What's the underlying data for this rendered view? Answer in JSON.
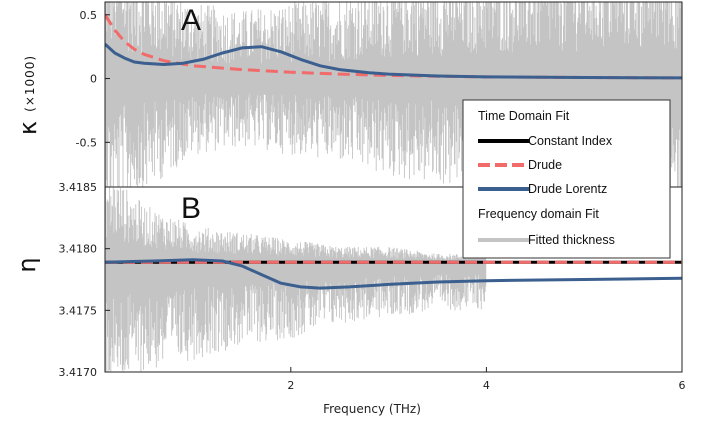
{
  "chart_data": [
    {
      "panel": "A",
      "type": "line",
      "ylabel_symbol": "κ",
      "ylabel_unit": "(×1000)",
      "xlim": [
        0.1,
        6
      ],
      "ylim": [
        -0.85,
        0.6
      ],
      "yticks": [
        0.5,
        0,
        -0.5
      ],
      "ytick_labels": [
        "0.5",
        "0",
        "-0.5"
      ],
      "noise_envelope": {
        "x": [
          0.1,
          0.5,
          1.0,
          1.5,
          2.0,
          2.5,
          3.0,
          3.5,
          4.0,
          4.5,
          5.0,
          5.5,
          6.0
        ],
        "half_width": [
          0.9,
          0.75,
          0.5,
          0.45,
          0.5,
          0.55,
          0.65,
          0.7,
          0.75,
          0.8,
          0.85,
          0.9,
          0.9
        ]
      },
      "series": [
        {
          "name": "Drude",
          "color": "#f26b6b",
          "style": "dashed",
          "x": [
            0.1,
            0.2,
            0.3,
            0.4,
            0.5,
            0.7,
            1.0,
            1.5,
            2.0,
            2.5,
            3.0,
            3.5,
            4.0,
            5.0,
            6.0
          ],
          "y": [
            0.5,
            0.38,
            0.29,
            0.23,
            0.19,
            0.14,
            0.1,
            0.07,
            0.05,
            0.035,
            0.025,
            0.018,
            0.013,
            0.008,
            0.005
          ]
        },
        {
          "name": "Drude Lorentz",
          "color": "#3b5f8f",
          "style": "solid",
          "x": [
            0.1,
            0.2,
            0.3,
            0.4,
            0.5,
            0.7,
            0.9,
            1.1,
            1.3,
            1.5,
            1.7,
            1.9,
            2.1,
            2.3,
            2.5,
            2.8,
            3.0,
            3.5,
            4.0,
            5.0,
            6.0
          ],
          "y": [
            0.27,
            0.2,
            0.16,
            0.13,
            0.12,
            0.11,
            0.12,
            0.15,
            0.2,
            0.24,
            0.25,
            0.21,
            0.15,
            0.1,
            0.07,
            0.045,
            0.035,
            0.02,
            0.013,
            0.008,
            0.005
          ]
        }
      ]
    },
    {
      "panel": "B",
      "type": "line",
      "ylabel_symbol": "η",
      "xlabel": "Frequency (THz)",
      "xlim": [
        0.1,
        6
      ],
      "ylim": [
        3.417,
        3.4185
      ],
      "yticks": [
        3.4185,
        3.418,
        3.4175,
        3.417
      ],
      "ytick_labels": [
        "3.4185",
        "3.4180",
        "3.4175",
        "3.4170"
      ],
      "xticks": [
        2,
        4,
        6
      ],
      "xtick_labels": [
        "2",
        "4",
        "6"
      ],
      "noise_envelope": {
        "x": [
          0.1,
          0.5,
          1.0,
          1.5,
          2.0,
          2.5,
          3.0,
          3.5,
          4.0
        ],
        "upper": [
          3.41855,
          3.4183,
          3.41815,
          3.4181,
          3.41805,
          3.418,
          3.418,
          3.41795,
          3.41795
        ],
        "lower": [
          3.417,
          3.4171,
          3.4172,
          3.4173,
          3.41735,
          3.41745,
          3.4175,
          3.41755,
          3.41755
        ],
        "end_x": 4.0
      },
      "series": [
        {
          "name": "Constant Index",
          "color": "#000000",
          "style": "solid",
          "x": [
            0.1,
            6
          ],
          "y": [
            3.41789,
            3.41789
          ]
        },
        {
          "name": "Drude",
          "color": "#f26b6b",
          "style": "dashed",
          "x": [
            0.1,
            6
          ],
          "y": [
            3.41789,
            3.41789
          ]
        },
        {
          "name": "Drude Lorentz",
          "color": "#3b5f8f",
          "style": "solid",
          "x": [
            0.1,
            0.6,
            1.0,
            1.3,
            1.5,
            1.7,
            1.9,
            2.1,
            2.3,
            2.6,
            3.0,
            3.5,
            4.0,
            5.0,
            6.0
          ],
          "y": [
            3.41789,
            3.4179,
            3.41791,
            3.4179,
            3.41786,
            3.41779,
            3.41772,
            3.41769,
            3.41768,
            3.41769,
            3.41771,
            3.41773,
            3.41774,
            3.41775,
            3.41776
          ]
        }
      ]
    }
  ],
  "labels": {
    "panel_a": "A",
    "panel_b": "B",
    "kappa_symbol": "κ",
    "kappa_unit": "(×1000)",
    "eta_symbol": "η",
    "xlabel": "Frequency (THz)"
  },
  "legend": {
    "header_time": "Time Domain Fit",
    "constant_index": "Constant Index",
    "drude": "Drude",
    "drude_lorentz": "Drude Lorentz",
    "header_freq": "Frequency domain Fit",
    "fitted_thickness": "Fitted thickness"
  },
  "colors": {
    "noise": "#c4c4c4",
    "drude": "#f26b6b",
    "drude_lorentz": "#3b5f8f",
    "constant": "#000000"
  }
}
